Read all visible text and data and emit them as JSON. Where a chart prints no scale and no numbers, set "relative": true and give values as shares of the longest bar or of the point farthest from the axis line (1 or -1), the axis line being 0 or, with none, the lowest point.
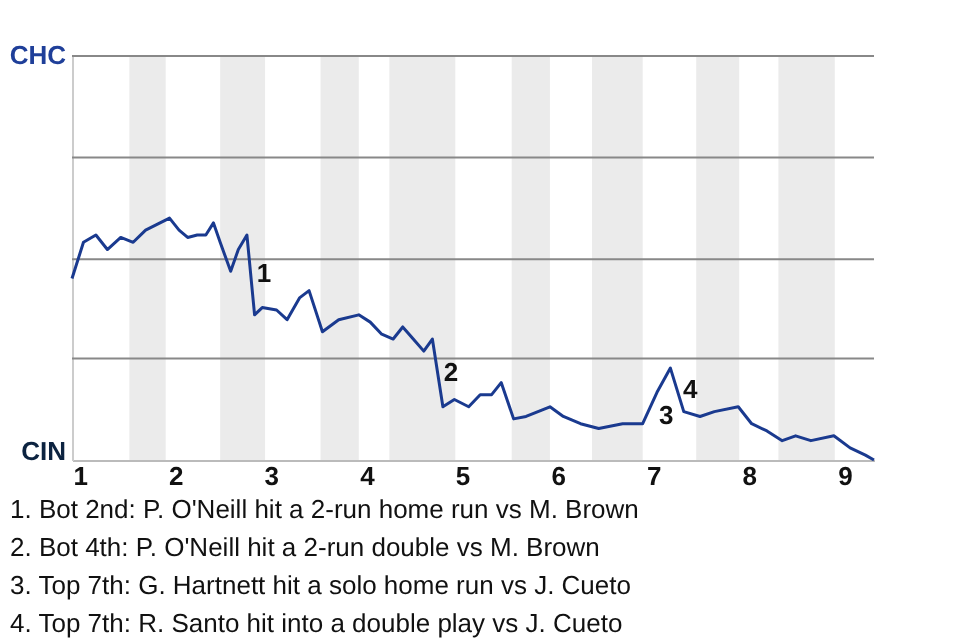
{
  "chart_data": {
    "type": "line",
    "relative": true,
    "x": [
      0.92,
      1.04,
      1.17,
      1.29,
      1.43,
      1.56,
      1.69,
      1.94,
      2.04,
      2.13,
      2.23,
      2.32,
      2.4,
      2.47,
      2.58,
      2.66,
      2.75,
      2.83,
      2.91,
      3.06,
      3.17,
      3.3,
      3.4,
      3.54,
      3.71,
      3.92,
      4.04,
      4.16,
      4.28,
      4.38,
      4.49,
      4.6,
      4.69,
      4.8,
      4.92,
      5.07,
      5.19,
      5.31,
      5.41,
      5.54,
      5.67,
      5.92,
      6.06,
      6.24,
      6.43,
      6.68,
      6.89,
      7.04,
      7.18,
      7.32,
      7.49,
      7.64,
      7.89,
      8.03,
      8.19,
      8.35,
      8.49,
      8.65,
      8.89,
      9.06,
      9.22,
      9.31
    ],
    "series": [
      {
        "color": "#1a3a8f",
        "values": [
          0.75,
          0.9,
          0.93,
          0.87,
          0.92,
          0.9,
          0.95,
          1,
          0.95,
          0.92,
          0.93,
          0.93,
          0.98,
          0.9,
          0.78,
          0.87,
          0.93,
          0.6,
          0.63,
          0.62,
          0.58,
          0.67,
          0.7,
          0.53,
          0.58,
          0.6,
          0.57,
          0.52,
          0.5,
          0.55,
          0.5,
          0.45,
          0.5,
          0.22,
          0.25,
          0.22,
          0.27,
          0.27,
          0.32,
          0.17,
          0.18,
          0.22,
          0.18,
          0.15,
          0.13,
          0.15,
          0.15,
          0.28,
          0.38,
          0.2,
          0.18,
          0.2,
          0.22,
          0.15,
          0.12,
          0.08,
          0.1,
          0.08,
          0.1,
          0.05,
          0.02,
          0
        ]
      }
    ],
    "xlim": [
      0.92,
      9.31
    ],
    "xticks": [
      1,
      2,
      3,
      4,
      5,
      6,
      7,
      8,
      9
    ],
    "ref_lines": [
      {
        "axis": "y",
        "value": 0.42,
        "color": "#888888"
      },
      {
        "axis": "y",
        "value": 0.83,
        "color": "#888888"
      },
      {
        "axis": "y",
        "value": 1.25,
        "color": "#888888"
      },
      {
        "axis": "y",
        "value": 1.67,
        "color": "#888888"
      }
    ],
    "bands": [
      {
        "axis": "x",
        "from": 1.52,
        "to": 1.9,
        "color": "#ebebeb"
      },
      {
        "axis": "x",
        "from": 2.47,
        "to": 2.94,
        "color": "#ebebeb"
      },
      {
        "axis": "x",
        "from": 3.52,
        "to": 3.92,
        "color": "#ebebeb"
      },
      {
        "axis": "x",
        "from": 4.24,
        "to": 4.93,
        "color": "#ebebeb"
      },
      {
        "axis": "x",
        "from": 5.52,
        "to": 5.92,
        "color": "#ebebeb"
      },
      {
        "axis": "x",
        "from": 6.36,
        "to": 6.89,
        "color": "#ebebeb"
      },
      {
        "axis": "x",
        "from": 7.45,
        "to": 7.9,
        "color": "#ebebeb"
      },
      {
        "axis": "x",
        "from": 8.31,
        "to": 8.9,
        "color": "#ebebeb"
      }
    ],
    "annotations": [
      "CHC",
      "CIN",
      {
        "text": "1",
        "x": 2.79,
        "y": 0.77
      },
      {
        "text": "2",
        "x": 4.745,
        "y": 0.36
      },
      {
        "text": "3",
        "x": 7.04,
        "y": 0.28
      },
      {
        "text": "4",
        "x": 7.25,
        "y": 0.29
      },
      "1. Bot 2nd: P. O'Neill hit a 2-run home run vs M. Brown",
      "2. Bot 4th: P. O'Neill hit a 2-run double vs M. Brown",
      "3. Top 7th: G. Hartnett hit a solo home run vs J. Cueto",
      "4. Top 7th: R. Santo hit into a double play vs J. Cueto"
    ]
  }
}
